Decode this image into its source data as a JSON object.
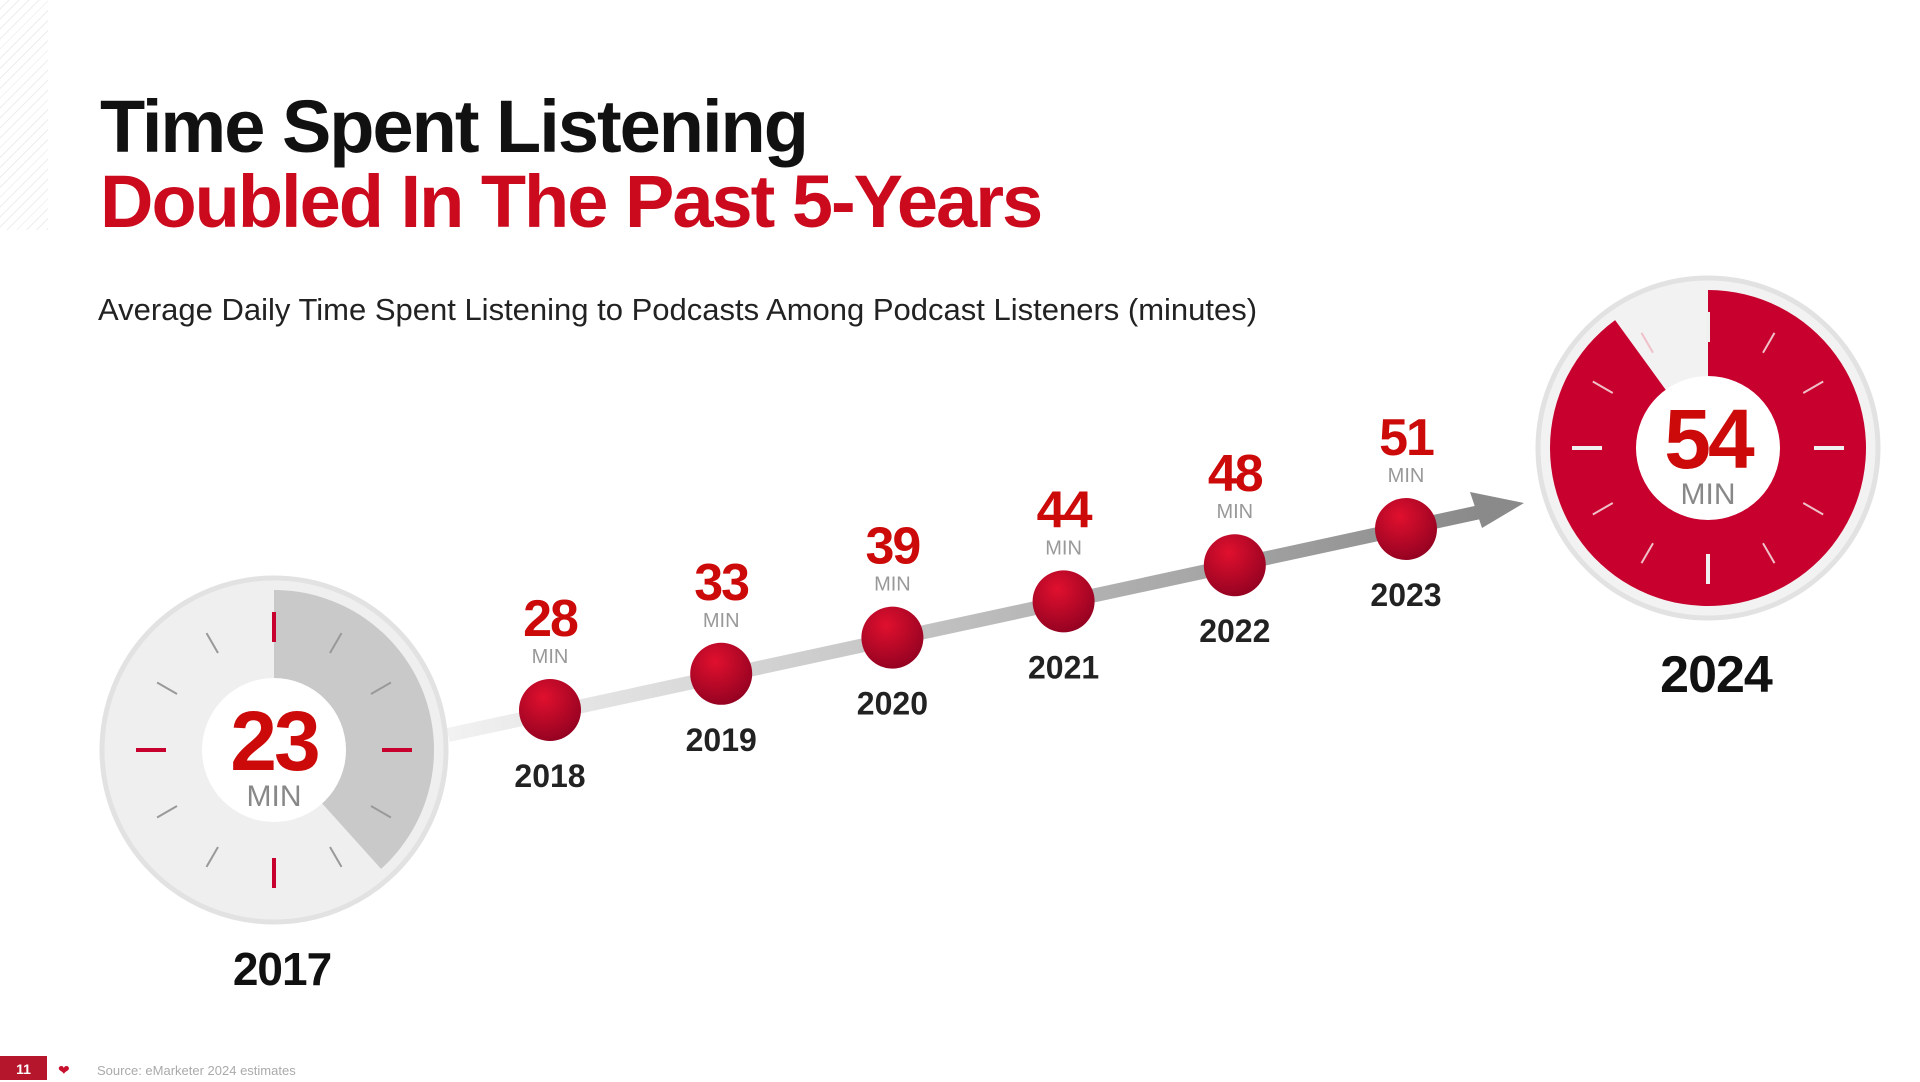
{
  "header": {
    "title_line1": "Time Spent Listening",
    "title_line2": "Doubled In The Past 5-Years",
    "subtitle": "Average Daily Time Spent Listening to Podcasts Among Podcast Listeners (minutes)"
  },
  "footer": {
    "page_number": "11",
    "source": "Source: eMarketer 2024 estimates",
    "logo_icon": "iheart-logo-icon"
  },
  "chart_data": {
    "type": "line",
    "title": "Average Daily Time Spent Listening to Podcasts Among Podcast Listeners (minutes)",
    "unit_label": "MIN",
    "x": [
      "2017",
      "2018",
      "2019",
      "2020",
      "2021",
      "2022",
      "2023",
      "2024"
    ],
    "values": [
      23,
      28,
      33,
      39,
      44,
      48,
      51,
      54
    ],
    "clock_max": 60,
    "colors": {
      "accent": "#c8002e",
      "value_text": "#cc0a0a",
      "gray": "#c9c9c9",
      "light": "#eeeeee"
    }
  }
}
